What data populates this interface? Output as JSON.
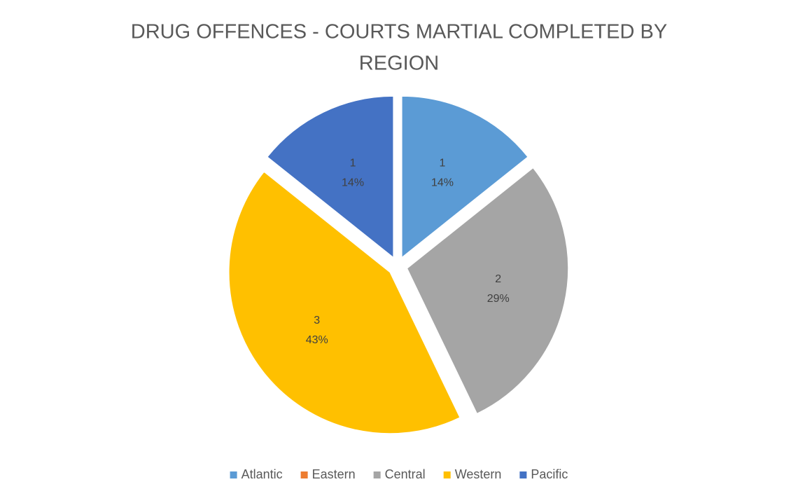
{
  "chart_data": {
    "type": "pie",
    "title": [
      "DRUG OFFENCES - COURTS MARTIAL COMPLETED BY",
      "REGION"
    ],
    "categories": [
      "Atlantic",
      "Eastern",
      "Central",
      "Western",
      "Pacific"
    ],
    "values": [
      1,
      0,
      2,
      3,
      1
    ],
    "value_labels": [
      "14%",
      null,
      "29%",
      "43%",
      "14%"
    ],
    "colors": [
      "#5b9bd5",
      "#ed7d31",
      "#a5a5a5",
      "#ffc000",
      "#4472c4"
    ],
    "legend": "bottom"
  }
}
